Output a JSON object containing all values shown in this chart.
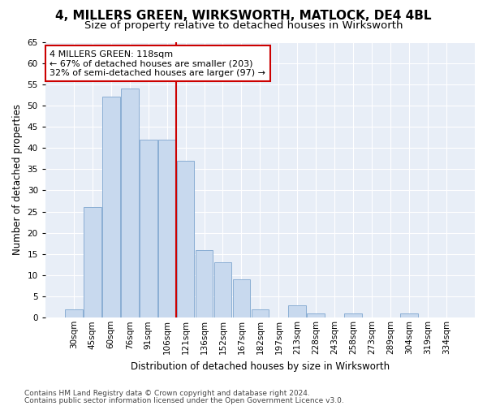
{
  "title": "4, MILLERS GREEN, WIRKSWORTH, MATLOCK, DE4 4BL",
  "subtitle": "Size of property relative to detached houses in Wirksworth",
  "xlabel": "Distribution of detached houses by size in Wirksworth",
  "ylabel": "Number of detached properties",
  "categories": [
    "30sqm",
    "45sqm",
    "60sqm",
    "76sqm",
    "91sqm",
    "106sqm",
    "121sqm",
    "136sqm",
    "152sqm",
    "167sqm",
    "182sqm",
    "197sqm",
    "213sqm",
    "228sqm",
    "243sqm",
    "258sqm",
    "273sqm",
    "289sqm",
    "304sqm",
    "319sqm",
    "334sqm"
  ],
  "values": [
    2,
    26,
    52,
    54,
    42,
    42,
    37,
    16,
    13,
    9,
    2,
    0,
    3,
    1,
    0,
    1,
    0,
    0,
    1,
    0,
    0
  ],
  "bar_color": "#c8d9ee",
  "bar_edge_color": "#8aaed4",
  "vline_index": 6,
  "vline_color": "#cc0000",
  "annotation_text": "4 MILLERS GREEN: 118sqm\n← 67% of detached houses are smaller (203)\n32% of semi-detached houses are larger (97) →",
  "annotation_box_color": "#ffffff",
  "annotation_box_edge": "#cc0000",
  "ylim": [
    0,
    65
  ],
  "background_color": "#e8eef7",
  "grid_color": "#ffffff",
  "fig_bg": "#ffffff",
  "footer1": "Contains HM Land Registry data © Crown copyright and database right 2024.",
  "footer2": "Contains public sector information licensed under the Open Government Licence v3.0.",
  "title_fontsize": 11,
  "subtitle_fontsize": 9.5,
  "axis_label_fontsize": 8.5,
  "tick_fontsize": 7.5,
  "annotation_fontsize": 8,
  "footer_fontsize": 6.5
}
